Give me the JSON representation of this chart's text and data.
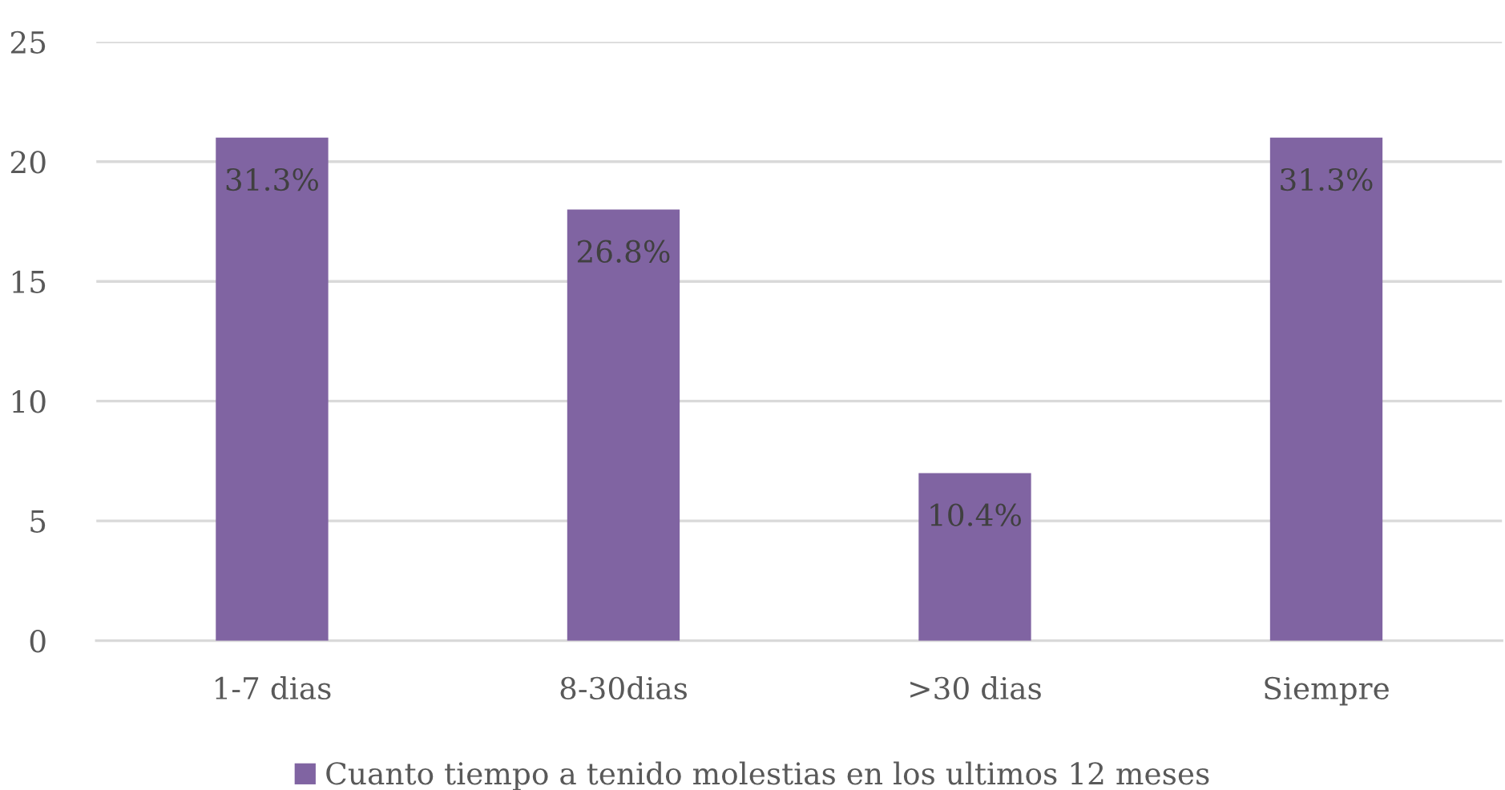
{
  "chart_data": {
    "type": "bar",
    "categories": [
      "1-7 dias",
      "8-30dias",
      ">30 dias",
      "Siempre"
    ],
    "series": [
      {
        "name": "Cuanto tiempo a tenido molestias en los ultimos 12 meses",
        "color": "#8064a2",
        "values": [
          21,
          18,
          7,
          21
        ]
      }
    ],
    "annotations": [
      {
        "text": "31.3%",
        "x": "1-7 dias",
        "y": 21
      },
      {
        "text": "26.8%",
        "x": "8-30dias",
        "y": 18
      },
      {
        "text": "10.4%",
        "x": ">30 dias",
        "y": 7
      },
      {
        "text": "31.3%",
        "x": "Siempre",
        "y": 21
      }
    ],
    "ylim": [
      0,
      25
    ],
    "yticks": [
      0,
      5,
      10,
      15,
      20,
      25
    ],
    "grid": "y",
    "legend": "bottom"
  }
}
